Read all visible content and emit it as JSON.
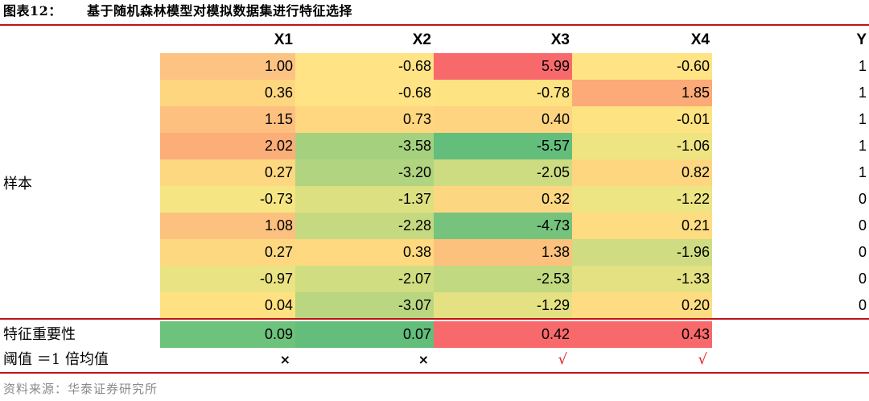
{
  "title": {
    "tag": "图表12：",
    "text": "基于随机森林模型对模拟数据集进行特征选择"
  },
  "table": {
    "headers": [
      "X1",
      "X2",
      "X3",
      "X4",
      "Y"
    ],
    "side_labels": {
      "sample": "样本",
      "importance": "特征重要性",
      "threshold": "阈值 ＝1 倍均值"
    },
    "rows": [
      [
        "1.00",
        "-0.68",
        "5.99",
        "-0.60",
        "1"
      ],
      [
        "0.36",
        "-0.68",
        "-0.78",
        "1.85",
        "1"
      ],
      [
        "1.15",
        "0.73",
        "0.40",
        "-0.01",
        "1"
      ],
      [
        "2.02",
        "-3.58",
        "-5.57",
        "-1.06",
        "1"
      ],
      [
        "0.27",
        "-3.20",
        "-2.05",
        "0.82",
        "1"
      ],
      [
        "-0.73",
        "-1.37",
        "0.32",
        "-1.22",
        "0"
      ],
      [
        "1.08",
        "-2.28",
        "-4.73",
        "0.21",
        "0"
      ],
      [
        "0.27",
        "0.38",
        "1.38",
        "-1.96",
        "0"
      ],
      [
        "-0.97",
        "-2.07",
        "-2.53",
        "-1.33",
        "0"
      ],
      [
        "0.04",
        "-3.07",
        "-1.29",
        "0.20",
        "0"
      ]
    ],
    "row_colors": [
      [
        "#fdc382",
        "#ffe384",
        "#f8696b",
        "#ffe384"
      ],
      [
        "#fed680",
        "#ffe384",
        "#fee382",
        "#fcaa77"
      ],
      [
        "#fdc07f",
        "#fed780",
        "#fed480",
        "#fee382"
      ],
      [
        "#fcae78",
        "#a5d17e",
        "#63be7b",
        "#eee482"
      ],
      [
        "#fed881",
        "#b0d47f",
        "#cddc81",
        "#fed680"
      ],
      [
        "#f5e583",
        "#dde081",
        "#fdd681",
        "#ede483"
      ],
      [
        "#fdc17f",
        "#c5d980",
        "#75c37c",
        "#fedc81"
      ],
      [
        "#fed881",
        "#fed980",
        "#fcc17d",
        "#cfdc81"
      ],
      [
        "#eae383",
        "#d0dd81",
        "#c1d980",
        "#e4e183"
      ],
      [
        "#fee282",
        "#b9d680",
        "#e4e183",
        "#fedc81"
      ]
    ],
    "importance": [
      "0.09",
      "0.07",
      "0.42",
      "0.43"
    ],
    "importance_colors": [
      "#6dc27c",
      "#63be7b",
      "#f8696b",
      "#f8696b"
    ],
    "threshold_marks": [
      {
        "symbol": "×",
        "type": "cross"
      },
      {
        "symbol": "×",
        "type": "cross"
      },
      {
        "symbol": "√",
        "type": "check"
      },
      {
        "symbol": "√",
        "type": "check"
      }
    ]
  },
  "source": "资料来源：华泰证券研究所",
  "colors": {
    "accent_rule": "#c0121a",
    "check": "#e02020",
    "source_text": "#8a8a8a"
  }
}
